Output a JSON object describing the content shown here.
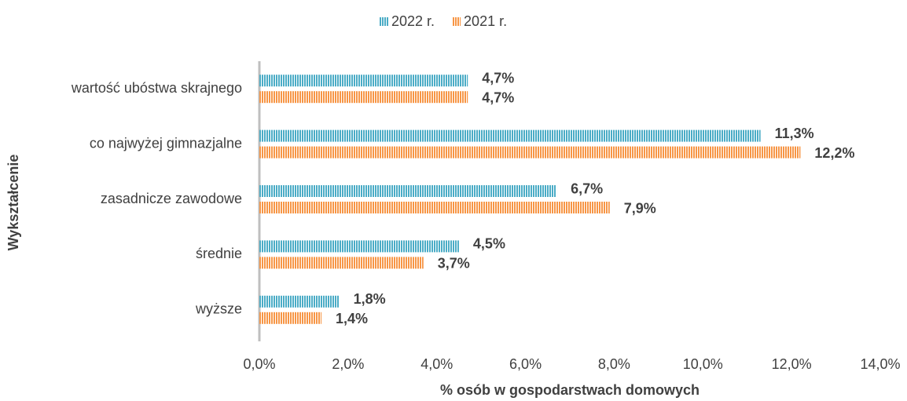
{
  "chart_data": {
    "type": "bar",
    "orientation": "horizontal",
    "x_axis_label": "% osób w gospodarstwach domowych",
    "y_axis_label": "Wykształcenie",
    "categories": [
      "wartość ubóstwa skrajnego",
      "co najwyżej gimnazjalne",
      "zasadnicze zawodowe",
      "średnie",
      "wyższe"
    ],
    "series": [
      {
        "name": "2022 r.",
        "color": "#4bacc6",
        "values": [
          4.7,
          11.3,
          6.7,
          4.5,
          1.8
        ],
        "value_labels": [
          "4,7%",
          "11,3%",
          "6,7%",
          "4,5%",
          "1,8%"
        ]
      },
      {
        "name": "2021 r.",
        "color": "#f79646",
        "values": [
          4.7,
          12.2,
          7.9,
          3.7,
          1.4
        ],
        "value_labels": [
          "4,7%",
          "12,2%",
          "7,9%",
          "3,7%",
          "1,4%"
        ]
      }
    ],
    "xlim": [
      0,
      14
    ],
    "xticks": [
      {
        "value": 0,
        "label": "0,0%"
      },
      {
        "value": 2,
        "label": "2,0%"
      },
      {
        "value": 4,
        "label": "4,0%"
      },
      {
        "value": 6,
        "label": "6,0%"
      },
      {
        "value": 8,
        "label": "8,0%"
      },
      {
        "value": 10,
        "label": "10,0%"
      },
      {
        "value": 12,
        "label": "12,0%"
      },
      {
        "value": 14,
        "label": "14,0%"
      }
    ],
    "grid": false,
    "legend": "top"
  }
}
